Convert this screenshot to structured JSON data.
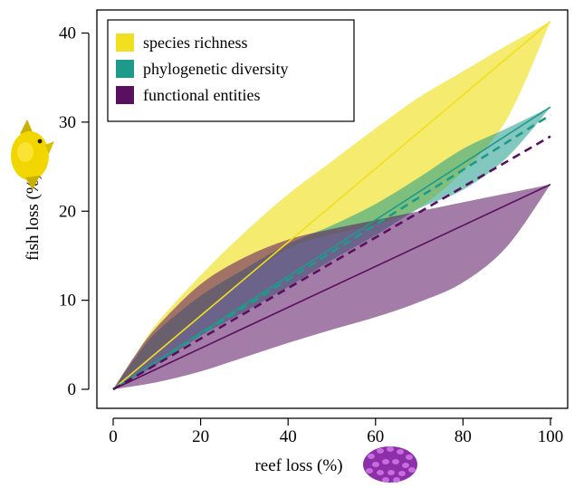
{
  "chart_data": {
    "type": "area",
    "xlabel": "reef loss (%)",
    "ylabel": "fish loss (%)",
    "xlim": [
      -4,
      104
    ],
    "ylim": [
      -1,
      43
    ],
    "x_ticks": [
      0,
      20,
      40,
      60,
      80,
      100
    ],
    "y_ticks": [
      0,
      10,
      20,
      30,
      40
    ],
    "legend_position": "top-left",
    "grid": false,
    "series": [
      {
        "name": "species richness",
        "color": "#f0e020",
        "band_alpha": 0.65,
        "line_style": "solid",
        "line": [
          [
            0,
            0
          ],
          [
            100,
            41.3
          ]
        ],
        "upper": [
          [
            0,
            0
          ],
          [
            5,
            3.8
          ],
          [
            10,
            7.4
          ],
          [
            20,
            12.8
          ],
          [
            30,
            17.6
          ],
          [
            40,
            21.9
          ],
          [
            50,
            25.6
          ],
          [
            60,
            29.3
          ],
          [
            70,
            32.8
          ],
          [
            80,
            35.7
          ],
          [
            90,
            38.6
          ],
          [
            100,
            41.3
          ]
        ],
        "lower": [
          [
            0,
            0
          ],
          [
            10,
            4.3
          ],
          [
            20,
            8.2
          ],
          [
            30,
            12.3
          ],
          [
            40,
            15.8
          ],
          [
            50,
            17.4
          ],
          [
            60,
            18.5
          ],
          [
            70,
            20.4
          ],
          [
            80,
            24.5
          ],
          [
            90,
            30.3
          ],
          [
            100,
            41.3
          ]
        ]
      },
      {
        "name": "phylogenetic diversity",
        "color": "#1e9a8a",
        "band_alpha": 0.55,
        "line_style": "solid",
        "dashed_line": [
          [
            0,
            0
          ],
          [
            100,
            30.8
          ]
        ],
        "line": [
          [
            0,
            0
          ],
          [
            100,
            31.7
          ]
        ],
        "upper": [
          [
            0,
            0
          ],
          [
            5,
            3.5
          ],
          [
            10,
            6.5
          ],
          [
            20,
            10.5
          ],
          [
            30,
            13.5
          ],
          [
            40,
            16.3
          ],
          [
            50,
            18.4
          ],
          [
            60,
            20.8
          ],
          [
            70,
            23.8
          ],
          [
            80,
            27.0
          ],
          [
            90,
            29.3
          ],
          [
            100,
            31.7
          ]
        ],
        "lower": [
          [
            0,
            0
          ],
          [
            10,
            2.8
          ],
          [
            20,
            6.0
          ],
          [
            30,
            8.7
          ],
          [
            40,
            11.5
          ],
          [
            50,
            14.5
          ],
          [
            60,
            17.3
          ],
          [
            70,
            20.3
          ],
          [
            80,
            22.4
          ],
          [
            90,
            26.0
          ],
          [
            100,
            31.7
          ]
        ]
      },
      {
        "name": "functional entities",
        "color": "#5a1060",
        "band_alpha": 0.55,
        "line_style": "solid",
        "dashed_line": [
          [
            0,
            0
          ],
          [
            100,
            28.4
          ]
        ],
        "line": [
          [
            0,
            0
          ],
          [
            100,
            23.0
          ]
        ],
        "upper": [
          [
            0,
            0
          ],
          [
            5,
            3.8
          ],
          [
            10,
            7.0
          ],
          [
            20,
            11.8
          ],
          [
            30,
            14.8
          ],
          [
            40,
            16.8
          ],
          [
            50,
            18.0
          ],
          [
            60,
            19.0
          ],
          [
            70,
            20.0
          ],
          [
            80,
            21.0
          ],
          [
            90,
            22.0
          ],
          [
            100,
            23.0
          ]
        ],
        "lower": [
          [
            0,
            0
          ],
          [
            10,
            0.8
          ],
          [
            20,
            2.0
          ],
          [
            30,
            3.6
          ],
          [
            40,
            5.2
          ],
          [
            50,
            6.7
          ],
          [
            60,
            8.1
          ],
          [
            70,
            9.8
          ],
          [
            80,
            12.0
          ],
          [
            90,
            16.0
          ],
          [
            100,
            23.0
          ]
        ]
      }
    ]
  },
  "icons": {
    "fish": "fish-icon",
    "coral": "coral-icon"
  }
}
